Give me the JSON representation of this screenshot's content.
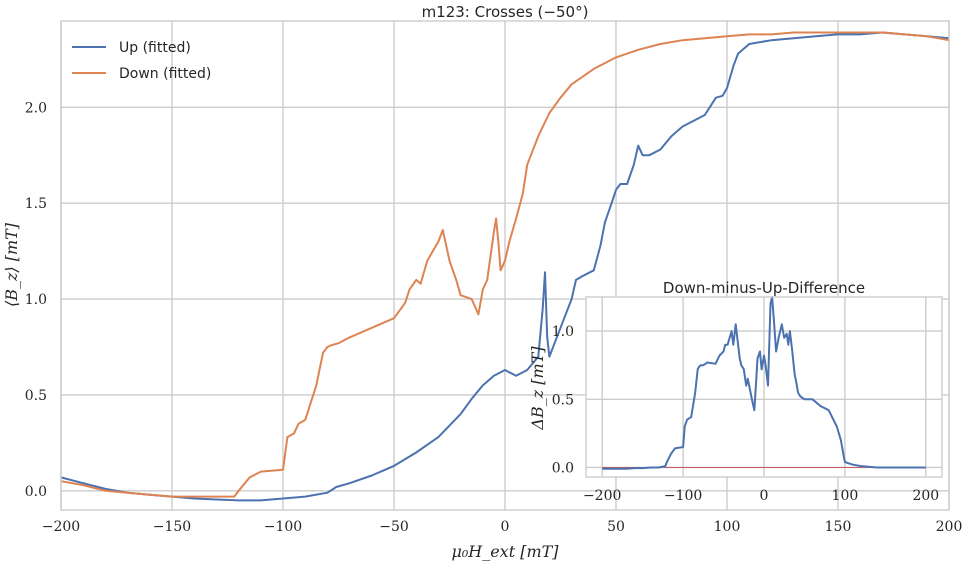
{
  "chart_data": [
    {
      "type": "line",
      "title": "m123: Crosses (−50°)",
      "xlabel": "μ₀H_ext [mT]",
      "ylabel": "⟨B_z⟩ [mT]",
      "xlim": [
        -200,
        200
      ],
      "ylim": [
        -0.1,
        2.45
      ],
      "xticks": [
        -200,
        -150,
        -100,
        -50,
        0,
        50,
        100,
        150,
        200
      ],
      "yticks": [
        0.0,
        0.5,
        1.0,
        1.5,
        2.0
      ],
      "grid": true,
      "legend": "top-left",
      "series": [
        {
          "name": "Up (fitted)",
          "color": "#4c72b0",
          "x": [
            -200,
            -190,
            -180,
            -170,
            -160,
            -150,
            -140,
            -130,
            -120,
            -110,
            -100,
            -90,
            -80,
            -76,
            -70,
            -60,
            -50,
            -40,
            -30,
            -20,
            -15,
            -10,
            -5,
            0,
            5,
            10,
            15,
            17,
            18,
            19,
            20,
            25,
            30,
            32,
            35,
            40,
            43,
            45,
            48,
            50,
            52,
            55,
            58,
            60,
            62,
            65,
            70,
            75,
            80,
            85,
            90,
            95,
            98,
            100,
            103,
            105,
            110,
            120,
            130,
            140,
            150,
            160,
            170,
            180,
            190,
            200
          ],
          "y": [
            0.07,
            0.04,
            0.01,
            -0.01,
            -0.02,
            -0.03,
            -0.04,
            -0.045,
            -0.05,
            -0.05,
            -0.04,
            -0.03,
            -0.01,
            0.02,
            0.04,
            0.08,
            0.13,
            0.2,
            0.28,
            0.4,
            0.48,
            0.55,
            0.6,
            0.63,
            0.6,
            0.63,
            0.7,
            0.95,
            1.14,
            0.8,
            0.7,
            0.85,
            1.0,
            1.1,
            1.12,
            1.15,
            1.28,
            1.4,
            1.5,
            1.57,
            1.6,
            1.6,
            1.7,
            1.8,
            1.75,
            1.75,
            1.78,
            1.85,
            1.9,
            1.93,
            1.96,
            2.05,
            2.06,
            2.1,
            2.22,
            2.28,
            2.33,
            2.35,
            2.36,
            2.37,
            2.38,
            2.38,
            2.39,
            2.38,
            2.37,
            2.36
          ]
        },
        {
          "name": "Down (fitted)",
          "color": "#dd8452",
          "x": [
            -200,
            -190,
            -180,
            -170,
            -160,
            -150,
            -140,
            -130,
            -122,
            -120,
            -115,
            -110,
            -100,
            -98,
            -95,
            -93,
            -90,
            -85,
            -82,
            -80,
            -78,
            -75,
            -70,
            -60,
            -50,
            -45,
            -43,
            -40,
            -38,
            -35,
            -30,
            -28,
            -25,
            -22,
            -20,
            -15,
            -12,
            -10,
            -8,
            -5,
            -4,
            -3,
            -2,
            0,
            2,
            5,
            8,
            10,
            15,
            20,
            25,
            30,
            40,
            50,
            60,
            70,
            80,
            90,
            100,
            110,
            120,
            130,
            140,
            150,
            160,
            170,
            180,
            190,
            200
          ],
          "y": [
            0.05,
            0.03,
            0.0,
            -0.01,
            -0.02,
            -0.03,
            -0.03,
            -0.03,
            -0.03,
            0.0,
            0.07,
            0.1,
            0.11,
            0.28,
            0.3,
            0.35,
            0.37,
            0.55,
            0.72,
            0.75,
            0.76,
            0.77,
            0.8,
            0.85,
            0.9,
            0.98,
            1.05,
            1.1,
            1.08,
            1.2,
            1.3,
            1.36,
            1.2,
            1.1,
            1.02,
            1.0,
            0.92,
            1.05,
            1.1,
            1.35,
            1.42,
            1.3,
            1.15,
            1.2,
            1.3,
            1.42,
            1.55,
            1.7,
            1.85,
            1.97,
            2.05,
            2.12,
            2.2,
            2.26,
            2.3,
            2.33,
            2.35,
            2.36,
            2.37,
            2.38,
            2.38,
            2.39,
            2.39,
            2.39,
            2.39,
            2.39,
            2.38,
            2.37,
            2.35
          ]
        }
      ]
    },
    {
      "type": "line",
      "title": "Down-minus-Up-Difference",
      "xlabel": "",
      "ylabel": "ΔB_z [mT]",
      "xlim": [
        -220,
        220
      ],
      "ylim": [
        -0.07,
        1.25
      ],
      "xticks": [
        -200,
        -100,
        0,
        100,
        200
      ],
      "yticks": [
        0.0,
        0.5,
        1.0
      ],
      "grid": true,
      "reference_line": {
        "y": 0,
        "color": "#c44e52"
      },
      "series": [
        {
          "color": "#4c72b0",
          "x": [
            -200,
            -190,
            -180,
            -170,
            -160,
            -150,
            -140,
            -130,
            -122,
            -120,
            -115,
            -110,
            -100,
            -98,
            -95,
            -90,
            -85,
            -82,
            -80,
            -78,
            -75,
            -70,
            -60,
            -55,
            -50,
            -48,
            -45,
            -42,
            -40,
            -38,
            -35,
            -30,
            -28,
            -25,
            -22,
            -20,
            -15,
            -12,
            -10,
            -8,
            -5,
            -3,
            0,
            2,
            5,
            8,
            10,
            12,
            15,
            18,
            20,
            22,
            25,
            28,
            30,
            32,
            35,
            38,
            40,
            42,
            45,
            50,
            60,
            70,
            80,
            90,
            95,
            98,
            100,
            105,
            110,
            120,
            140,
            160,
            180,
            190,
            200
          ],
          "y": [
            -0.01,
            -0.01,
            -0.01,
            -0.01,
            -0.005,
            -0.005,
            0.0,
            0.0,
            0.01,
            0.04,
            0.1,
            0.14,
            0.15,
            0.3,
            0.35,
            0.37,
            0.55,
            0.72,
            0.74,
            0.75,
            0.75,
            0.77,
            0.76,
            0.82,
            0.85,
            0.9,
            0.9,
            0.96,
            1.0,
            0.9,
            1.05,
            0.8,
            0.75,
            0.72,
            0.6,
            0.65,
            0.5,
            0.42,
            0.6,
            0.8,
            0.85,
            0.72,
            0.82,
            0.75,
            0.6,
            1.2,
            1.25,
            1.1,
            0.85,
            0.95,
            1.0,
            1.05,
            0.95,
            0.98,
            0.9,
            1.0,
            0.85,
            0.68,
            0.62,
            0.55,
            0.52,
            0.5,
            0.5,
            0.45,
            0.42,
            0.3,
            0.2,
            0.1,
            0.04,
            0.03,
            0.02,
            0.01,
            0.0,
            0.0,
            0.0,
            0.0,
            0.0
          ]
        }
      ]
    }
  ]
}
